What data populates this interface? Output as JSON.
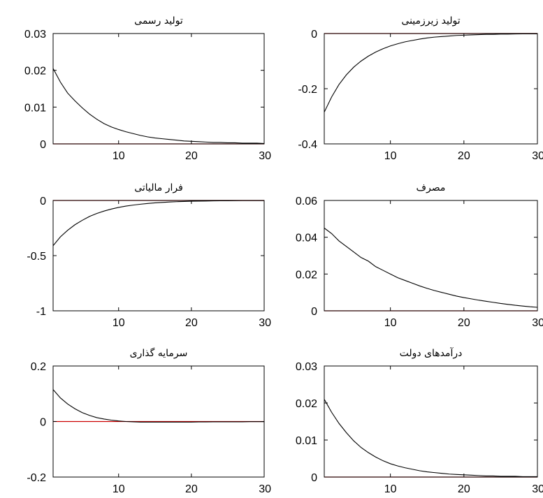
{
  "chart_data": [
    {
      "type": "line",
      "title": "تولید رسمی",
      "xlim": [
        1,
        30
      ],
      "ylim": [
        0,
        0.03
      ],
      "xticks": [
        10,
        20,
        30
      ],
      "xtick_labels": [
        "10",
        "20",
        "30"
      ],
      "yticks": [
        0,
        0.01,
        0.02,
        0.03
      ],
      "ytick_labels": [
        "0",
        "0.01",
        "0.02",
        "0.03"
      ],
      "baseline": 0,
      "baseline_color": "#cc0000",
      "line_color": "#000000",
      "x": [
        1,
        2,
        3,
        4,
        5,
        6,
        7,
        8,
        9,
        10,
        11,
        12,
        13,
        14,
        15,
        16,
        17,
        18,
        19,
        20,
        21,
        22,
        23,
        24,
        25,
        26,
        27,
        28,
        29,
        30
      ],
      "values": [
        0.0205,
        0.0168,
        0.0138,
        0.0117,
        0.0098,
        0.0081,
        0.0067,
        0.0055,
        0.0046,
        0.0039,
        0.0033,
        0.0028,
        0.0023,
        0.0019,
        0.0016,
        0.0014,
        0.0012,
        0.001,
        0.0008,
        0.0007,
        0.0006,
        0.0005,
        0.0004,
        0.0004,
        0.0003,
        0.0003,
        0.0002,
        0.0002,
        0.0002,
        0.0001
      ]
    },
    {
      "type": "line",
      "title": "تولید زیرزمینی",
      "xlim": [
        1,
        30
      ],
      "ylim": [
        -0.4,
        0
      ],
      "xticks": [
        10,
        20,
        30
      ],
      "xtick_labels": [
        "10",
        "20",
        "30"
      ],
      "yticks": [
        -0.4,
        -0.2,
        0
      ],
      "ytick_labels": [
        "-0.4",
        "-0.2",
        "0"
      ],
      "baseline": 0,
      "baseline_color": "#cc0000",
      "line_color": "#000000",
      "x": [
        1,
        2,
        3,
        4,
        5,
        6,
        7,
        8,
        9,
        10,
        11,
        12,
        13,
        14,
        15,
        16,
        17,
        18,
        19,
        20,
        21,
        22,
        23,
        24,
        25,
        26,
        27,
        28,
        29,
        30
      ],
      "values": [
        -0.285,
        -0.23,
        -0.185,
        -0.15,
        -0.122,
        -0.1,
        -0.082,
        -0.067,
        -0.055,
        -0.045,
        -0.037,
        -0.03,
        -0.025,
        -0.02,
        -0.016,
        -0.013,
        -0.011,
        -0.009,
        -0.007,
        -0.006,
        -0.005,
        -0.004,
        -0.003,
        -0.003,
        -0.002,
        -0.002,
        -0.0015,
        -0.001,
        -0.001,
        -0.001
      ]
    },
    {
      "type": "line",
      "title": "فرار مالیاتی",
      "xlim": [
        1,
        30
      ],
      "ylim": [
        -1,
        0
      ],
      "xticks": [
        10,
        20,
        30
      ],
      "xtick_labels": [
        "10",
        "20",
        "30"
      ],
      "yticks": [
        -1,
        -0.5,
        0
      ],
      "ytick_labels": [
        "-1",
        "-0.5",
        "0"
      ],
      "baseline": 0,
      "baseline_color": "#cc0000",
      "line_color": "#000000",
      "x": [
        1,
        2,
        3,
        4,
        5,
        6,
        7,
        8,
        9,
        10,
        11,
        12,
        13,
        14,
        15,
        16,
        17,
        18,
        19,
        20,
        21,
        22,
        23,
        24,
        25,
        26,
        27,
        28,
        29,
        30
      ],
      "values": [
        -0.41,
        -0.33,
        -0.27,
        -0.22,
        -0.18,
        -0.145,
        -0.118,
        -0.096,
        -0.078,
        -0.063,
        -0.051,
        -0.042,
        -0.034,
        -0.027,
        -0.022,
        -0.018,
        -0.014,
        -0.011,
        -0.009,
        -0.007,
        -0.006,
        -0.005,
        -0.004,
        -0.003,
        -0.0025,
        -0.002,
        -0.0015,
        -0.001,
        -0.001,
        -0.001
      ]
    },
    {
      "type": "line",
      "title": "مصرف",
      "xlim": [
        1,
        30
      ],
      "ylim": [
        0,
        0.06
      ],
      "xticks": [
        10,
        20,
        30
      ],
      "xtick_labels": [
        "10",
        "20",
        "30"
      ],
      "yticks": [
        0,
        0.02,
        0.04,
        0.06
      ],
      "ytick_labels": [
        "0",
        "0.02",
        "0.04",
        "0.06"
      ],
      "baseline": 0,
      "baseline_color": "#cc0000",
      "line_color": "#000000",
      "x": [
        1,
        2,
        3,
        4,
        5,
        6,
        7,
        8,
        9,
        10,
        11,
        12,
        13,
        14,
        15,
        16,
        17,
        18,
        19,
        20,
        21,
        22,
        23,
        24,
        25,
        26,
        27,
        28,
        29,
        30
      ],
      "values": [
        0.045,
        0.042,
        0.038,
        0.035,
        0.032,
        0.029,
        0.027,
        0.024,
        0.022,
        0.02,
        0.018,
        0.0165,
        0.015,
        0.0135,
        0.0122,
        0.011,
        0.01,
        0.009,
        0.008,
        0.0072,
        0.0065,
        0.0058,
        0.0052,
        0.0046,
        0.004,
        0.0035,
        0.003,
        0.0026,
        0.0022,
        0.0019
      ]
    },
    {
      "type": "line",
      "title": "سرمایه گذاری",
      "xlim": [
        1,
        30
      ],
      "ylim": [
        -0.2,
        0.2
      ],
      "xticks": [
        10,
        20,
        30
      ],
      "xtick_labels": [
        "10",
        "20",
        "30"
      ],
      "yticks": [
        -0.2,
        0,
        0.2
      ],
      "ytick_labels": [
        "-0.2",
        "0",
        "0.2"
      ],
      "baseline": 0,
      "baseline_color": "#cc0000",
      "line_color": "#000000",
      "x": [
        1,
        2,
        3,
        4,
        5,
        6,
        7,
        8,
        9,
        10,
        11,
        12,
        13,
        14,
        15,
        16,
        17,
        18,
        19,
        20,
        21,
        22,
        23,
        24,
        25,
        26,
        27,
        28,
        29,
        30
      ],
      "values": [
        0.115,
        0.085,
        0.063,
        0.046,
        0.032,
        0.022,
        0.014,
        0.009,
        0.005,
        0.002,
        0.0,
        -0.001,
        -0.002,
        -0.002,
        -0.002,
        -0.002,
        -0.002,
        -0.002,
        -0.002,
        -0.002,
        -0.0015,
        -0.0015,
        -0.001,
        -0.001,
        -0.001,
        -0.001,
        -0.001,
        -0.0005,
        -0.0005,
        -0.0005
      ]
    },
    {
      "type": "line",
      "title": "درآمدهای دولت",
      "xlim": [
        1,
        30
      ],
      "ylim": [
        0,
        0.03
      ],
      "xticks": [
        10,
        20,
        30
      ],
      "xtick_labels": [
        "10",
        "20",
        "30"
      ],
      "yticks": [
        0,
        0.01,
        0.02,
        0.03
      ],
      "ytick_labels": [
        "0",
        "0.01",
        "0.02",
        "0.03"
      ],
      "baseline": 0,
      "baseline_color": "#cc0000",
      "line_color": "#000000",
      "x": [
        1,
        2,
        3,
        4,
        5,
        6,
        7,
        8,
        9,
        10,
        11,
        12,
        13,
        14,
        15,
        16,
        17,
        18,
        19,
        20,
        21,
        22,
        23,
        24,
        25,
        26,
        27,
        28,
        29,
        30
      ],
      "values": [
        0.021,
        0.0175,
        0.0145,
        0.012,
        0.0098,
        0.008,
        0.0066,
        0.0054,
        0.0044,
        0.0036,
        0.003,
        0.0025,
        0.0021,
        0.0017,
        0.0014,
        0.0012,
        0.001,
        0.0008,
        0.0007,
        0.0006,
        0.0005,
        0.0004,
        0.0003,
        0.0003,
        0.0002,
        0.0002,
        0.0002,
        0.0001,
        0.0001,
        0.0001
      ]
    }
  ]
}
